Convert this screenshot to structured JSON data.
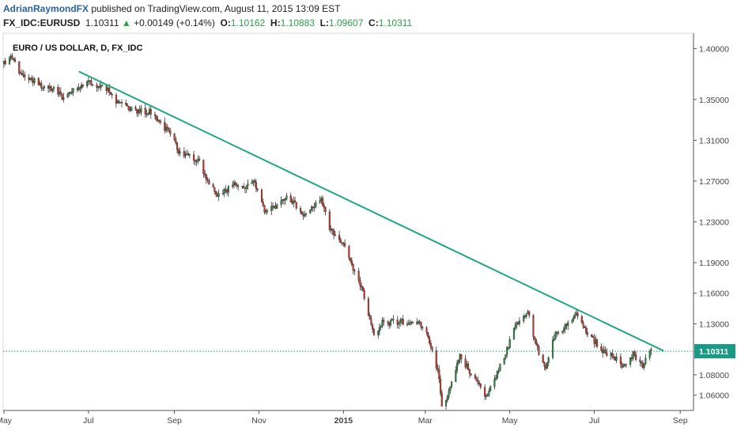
{
  "header": {
    "author": "AdrianRaymondFX",
    "published_text": " published on TradingView.com, August 11, 2015 13:09 EST",
    "symbol": "FX_IDC:EURUSD",
    "last": "1.10311",
    "change_arrow": "▲",
    "change": "+0.00149 (+0.14%)",
    "o_label": "O:",
    "o_value": "1.10162",
    "h_label": "H:",
    "h_value": "1.10883",
    "l_label": "L:",
    "l_value": "1.09607",
    "c_label": "C:",
    "c_value": "1.10311"
  },
  "chart_data": {
    "type": "candlestick",
    "title": "EURO / US DOLLAR, D, FX_IDC",
    "ylim": [
      1.045,
      1.415
    ],
    "yticks": [
      {
        "label": "1.40000",
        "value": 1.4
      },
      {
        "label": "1.35000",
        "value": 1.35
      },
      {
        "label": "1.31000",
        "value": 1.31
      },
      {
        "label": "1.27000",
        "value": 1.27
      },
      {
        "label": "1.23000",
        "value": 1.23
      },
      {
        "label": "1.19000",
        "value": 1.19
      },
      {
        "label": "1.16000",
        "value": 1.16
      },
      {
        "label": "1.13000",
        "value": 1.13
      },
      {
        "label": "1.08000",
        "value": 1.08
      },
      {
        "label": "1.06000",
        "value": 1.06
      }
    ],
    "xrange": [
      "2014-05-01",
      "2015-09-10"
    ],
    "xticks": [
      {
        "label": "May",
        "date": "2014-05-01"
      },
      {
        "label": "Jul",
        "date": "2014-07-01"
      },
      {
        "label": "Sep",
        "date": "2014-09-01"
      },
      {
        "label": "Nov",
        "date": "2014-11-01"
      },
      {
        "label": "2015",
        "date": "2015-01-01"
      },
      {
        "label": "Mar",
        "date": "2015-03-01"
      },
      {
        "label": "May",
        "date": "2015-05-01"
      },
      {
        "label": "Jul",
        "date": "2015-07-01"
      },
      {
        "label": "Sep",
        "date": "2015-09-01"
      }
    ],
    "last_price": {
      "label": "1.10311",
      "value": 1.10311
    },
    "trendline": {
      "start": {
        "date": "2014-06-24",
        "value": 1.3775
      },
      "end": {
        "date": "2015-08-20",
        "value": 1.1035
      }
    },
    "price_path": [
      [
        "2014-05-01",
        1.385
      ],
      [
        "2014-05-06",
        1.392
      ],
      [
        "2014-05-08",
        1.39
      ],
      [
        "2014-05-12",
        1.378
      ],
      [
        "2014-05-20",
        1.371
      ],
      [
        "2014-05-29",
        1.362
      ],
      [
        "2014-06-05",
        1.361
      ],
      [
        "2014-06-09",
        1.358
      ],
      [
        "2014-06-12",
        1.352
      ],
      [
        "2014-06-18",
        1.358
      ],
      [
        "2014-06-23",
        1.362
      ],
      [
        "2014-06-30",
        1.367
      ],
      [
        "2014-07-08",
        1.362
      ],
      [
        "2014-07-15",
        1.36
      ],
      [
        "2014-07-22",
        1.347
      ],
      [
        "2014-07-31",
        1.34
      ],
      [
        "2014-08-15",
        1.338
      ],
      [
        "2014-08-21",
        1.328
      ],
      [
        "2014-08-29",
        1.316
      ],
      [
        "2014-09-05",
        1.297
      ],
      [
        "2014-09-12",
        1.295
      ],
      [
        "2014-09-19",
        1.288
      ],
      [
        "2014-09-25",
        1.27
      ],
      [
        "2014-10-03",
        1.255
      ],
      [
        "2014-10-15",
        1.267
      ],
      [
        "2014-10-22",
        1.265
      ],
      [
        "2014-10-28",
        1.272
      ],
      [
        "2014-11-05",
        1.242
      ],
      [
        "2014-11-12",
        1.245
      ],
      [
        "2014-11-20",
        1.254
      ],
      [
        "2014-11-28",
        1.246
      ],
      [
        "2014-12-04",
        1.237
      ],
      [
        "2014-12-12",
        1.247
      ],
      [
        "2014-12-16",
        1.254
      ],
      [
        "2014-12-22",
        1.223
      ],
      [
        "2014-12-31",
        1.21
      ],
      [
        "2015-01-08",
        1.184
      ],
      [
        "2015-01-15",
        1.16
      ],
      [
        "2015-01-23",
        1.12
      ],
      [
        "2015-01-29",
        1.131
      ],
      [
        "2015-02-10",
        1.132
      ],
      [
        "2015-02-23",
        1.133
      ],
      [
        "2015-03-03",
        1.117
      ],
      [
        "2015-03-10",
        1.085
      ],
      [
        "2015-03-13",
        1.051
      ],
      [
        "2015-03-17",
        1.058
      ],
      [
        "2015-03-23",
        1.085
      ],
      [
        "2015-03-26",
        1.1
      ],
      [
        "2015-04-02",
        1.083
      ],
      [
        "2015-04-08",
        1.072
      ],
      [
        "2015-04-14",
        1.058
      ],
      [
        "2015-04-20",
        1.075
      ],
      [
        "2015-04-29",
        1.105
      ],
      [
        "2015-05-06",
        1.13
      ],
      [
        "2015-05-14",
        1.142
      ],
      [
        "2015-05-20",
        1.108
      ],
      [
        "2015-05-27",
        1.088
      ],
      [
        "2015-06-03",
        1.12
      ],
      [
        "2015-06-10",
        1.127
      ],
      [
        "2015-06-18",
        1.138
      ],
      [
        "2015-06-26",
        1.12
      ],
      [
        "2015-06-30",
        1.115
      ],
      [
        "2015-07-07",
        1.103
      ],
      [
        "2015-07-14",
        1.1
      ],
      [
        "2015-07-22",
        1.088
      ],
      [
        "2015-07-29",
        1.1
      ],
      [
        "2015-08-05",
        1.09
      ],
      [
        "2015-08-11",
        1.103
      ]
    ]
  }
}
